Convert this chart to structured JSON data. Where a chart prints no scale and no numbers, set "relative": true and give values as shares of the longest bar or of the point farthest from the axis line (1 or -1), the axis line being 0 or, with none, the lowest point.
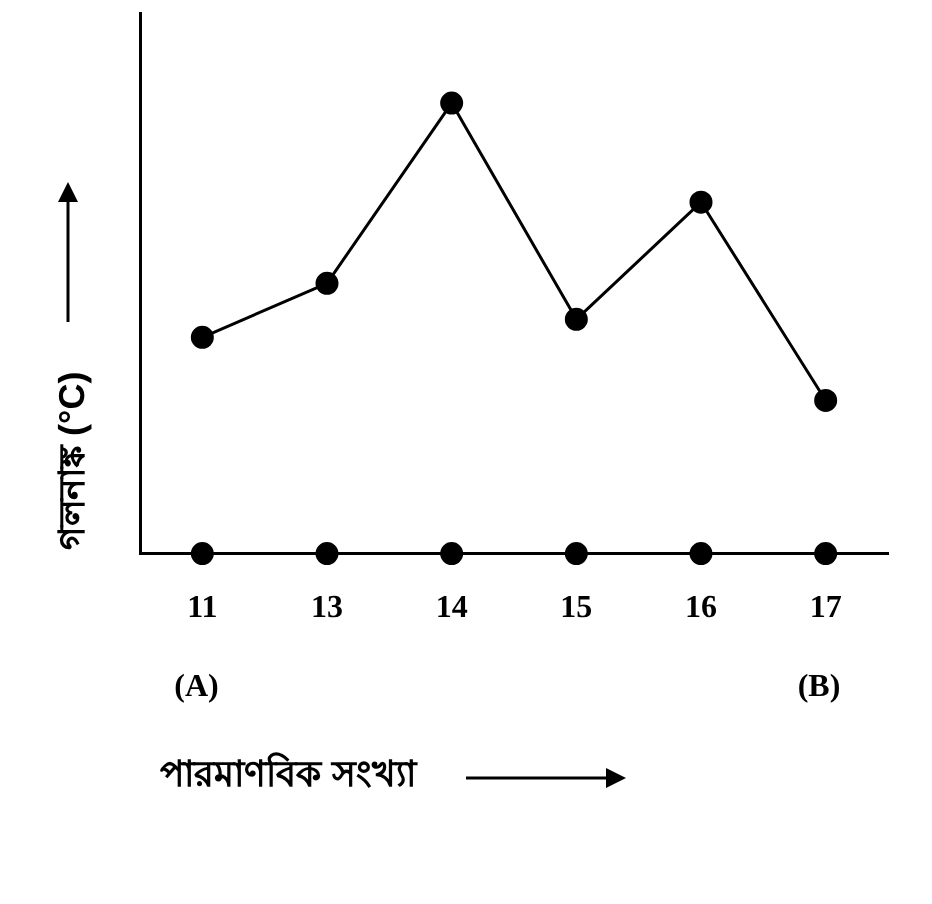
{
  "chart_data": {
    "type": "line",
    "relative": true,
    "categories": [
      "11",
      "13",
      "14",
      "15",
      "16",
      "17"
    ],
    "series": [
      {
        "color": "#000000",
        "values": [
          0.48,
          0.6,
          1,
          0.52,
          0.78,
          0.34
        ]
      },
      {
        "type": "scatter",
        "color": "#000000",
        "values": [
          0,
          0,
          0,
          0,
          0,
          0
        ]
      }
    ],
    "xlabel": "পারমাণবিক সংখ্যা",
    "ylabel": "গলনাঙ্ক (°C)",
    "annotations": [
      "(A)",
      "(B)"
    ],
    "marker": "circle",
    "line_style": "solid",
    "grid": false,
    "legend": false
  }
}
